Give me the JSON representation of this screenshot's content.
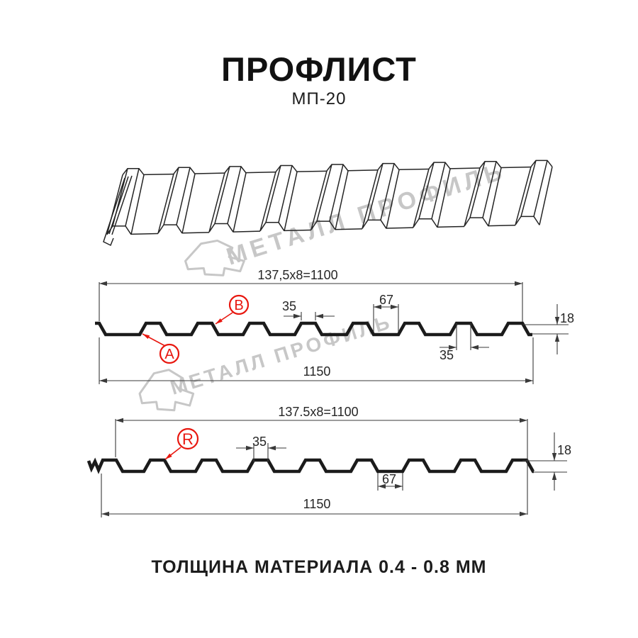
{
  "header": {
    "title": "ПРОФЛИСТ",
    "subtitle": "МП-20"
  },
  "watermark": {
    "text": "МЕТАЛЛ ПРОФИЛЬ",
    "color": "#c7c7c7"
  },
  "footer": {
    "text": "ТОЛЩИНА МАТЕРИАЛА 0.4 - 0.8 ММ"
  },
  "colors": {
    "profile_line": "#1b1b1b",
    "dimension_line": "#3a3a3a",
    "accent_red": "#e8170f",
    "watermark_gray": "#c7c7c7",
    "background": "#ffffff"
  },
  "diagram_top_section": {
    "pitch_dimension": "137,5x8=1100",
    "overall_width": "1150",
    "crest_top_width": "35",
    "valley_width": "67",
    "crest_top_width_right": "35",
    "profile_height": "18",
    "side_label_a": "A",
    "side_label_b": "B"
  },
  "diagram_bottom_section": {
    "pitch_dimension": "137.5x8=1100",
    "overall_width": "1150",
    "crest_top_width": "35",
    "valley_width": "67",
    "profile_height": "18",
    "side_label_r": "R"
  }
}
